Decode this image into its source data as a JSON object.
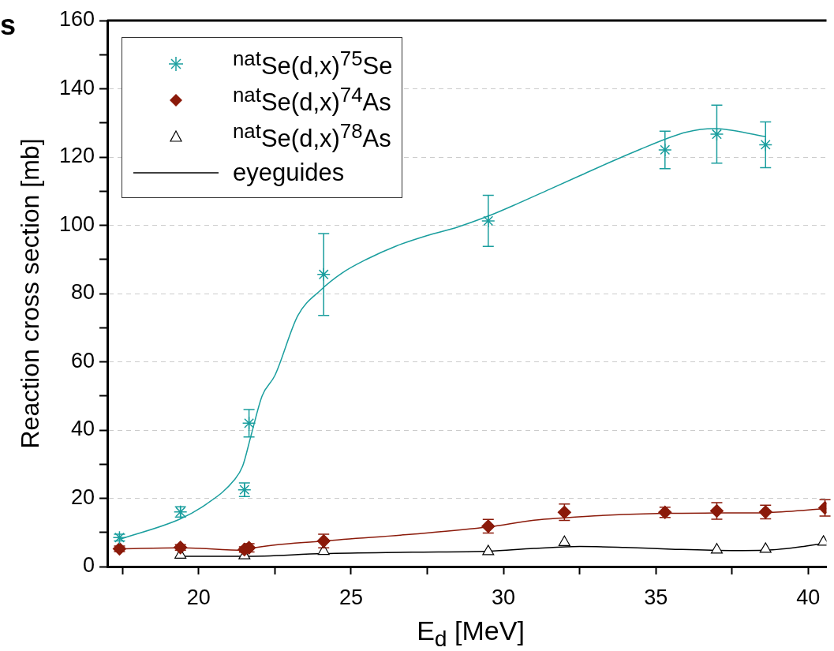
{
  "chart_data": {
    "type": "scatter",
    "xlabel": "E$_{d}$ [MeV]",
    "ylabel": "Reaction cross section [mb]",
    "annotations": [
      "s"
    ],
    "xlim": [
      17,
      40.6
    ],
    "xticks": [
      {
        "value": 17.5,
        "label": null
      },
      20,
      {
        "value": 22.5,
        "label": null
      },
      25,
      {
        "value": 27.5,
        "label": null
      },
      30,
      {
        "value": 32.5,
        "label": null
      },
      35,
      {
        "value": 37.5,
        "label": null
      },
      40
    ],
    "ylim": [
      0,
      160
    ],
    "yticks": [
      0,
      {
        "value": 10,
        "label": null
      },
      20,
      {
        "value": 30,
        "label": null
      },
      40,
      {
        "value": 50,
        "label": null
      },
      60,
      {
        "value": 70,
        "label": null
      },
      80,
      {
        "value": 90,
        "label": null
      },
      100,
      {
        "value": 110,
        "label": null
      },
      120,
      {
        "value": 130,
        "label": null
      },
      140,
      {
        "value": 150,
        "label": null
      },
      160
    ],
    "grid": "y",
    "legend": "top left",
    "series": [
      {
        "name": "$^{nat}$Se(d,x)$^{75}$Se",
        "color": "#1a9e9e",
        "marker": "cross",
        "x": [
          17.4,
          19.4,
          21.5,
          21.65,
          24.1,
          29.5,
          35.3,
          37.0,
          38.6
        ],
        "values": [
          8.5,
          16,
          22.5,
          42,
          85.6,
          101.3,
          122.1,
          126.7,
          123.6
        ],
        "errors": [
          1,
          1.5,
          2,
          4,
          12,
          7.5,
          5.5,
          8.5,
          6.7
        ]
      },
      {
        "name": "$^{nat}$Se(d,x)$^{74}$As",
        "color": "#8b1a0a",
        "marker": "diamond",
        "x": [
          17.4,
          19.4,
          21.5,
          21.65,
          24.1,
          29.5,
          32.0,
          35.3,
          37.0,
          38.6,
          40.55
        ],
        "values": [
          5.2,
          5.6,
          5.0,
          5.5,
          7.5,
          11.8,
          15.9,
          15.9,
          16.3,
          16.0,
          17.2
        ],
        "errors": [
          0.8,
          0.8,
          0.8,
          1.2,
          2,
          2,
          2.4,
          1.5,
          2.4,
          2,
          2.4
        ]
      },
      {
        "name": "$^{nat}$Se(d,x)$^{78}$As",
        "color": "#000000",
        "marker": "triangle",
        "x": [
          19.4,
          21.5,
          24.1,
          29.5,
          32.0,
          37.0,
          38.6,
          40.5
        ],
        "values": [
          3.4,
          3.2,
          4.5,
          4.4,
          7.1,
          4.9,
          5.1,
          7.2
        ]
      },
      {
        "type": "line",
        "color": "#1a9e9e",
        "marker": "none",
        "x": [
          17.4,
          19.4,
          20.25,
          21.16,
          21.44,
          21.72,
          22.08,
          22.5,
          23.25,
          24.0,
          24.7,
          25.5,
          26.5,
          27.5,
          28.5,
          29.5,
          30.5,
          31.5,
          32.5,
          33.5,
          34.5,
          35.3,
          36.0,
          36.9,
          38.6
        ],
        "values": [
          8.0,
          14,
          18.3,
          25.3,
          29.4,
          38.5,
          50,
          56,
          73.5,
          81,
          86,
          90,
          94,
          97,
          99.5,
          102.7,
          106.5,
          110.5,
          114.5,
          118.5,
          122.3,
          125.2,
          127.3,
          128.3,
          126
        ]
      },
      {
        "type": "line",
        "color": "#8b1a0a",
        "marker": "none",
        "x": [
          17.4,
          19.4,
          21.5,
          21.7,
          24.1,
          27,
          29.5,
          31,
          32,
          33.5,
          35.3,
          37,
          38.6,
          40.6
        ],
        "values": [
          5.2,
          5.5,
          4.8,
          5.3,
          7.5,
          9.5,
          11.6,
          13.6,
          14.3,
          15.1,
          15.6,
          15.7,
          15.8,
          17
        ]
      },
      {
        "name": "eyeguides",
        "type": "line",
        "color": "#000000",
        "marker": "none",
        "x": [
          19.4,
          21.5,
          24.1,
          27,
          29.5,
          31,
          32.5,
          34,
          35.5,
          37.5,
          38.6,
          40.6
        ],
        "values": [
          3.0,
          3.0,
          3.8,
          4.2,
          4.5,
          5.3,
          5.9,
          5.6,
          5.1,
          4.7,
          4.8,
          6.8
        ]
      }
    ]
  }
}
